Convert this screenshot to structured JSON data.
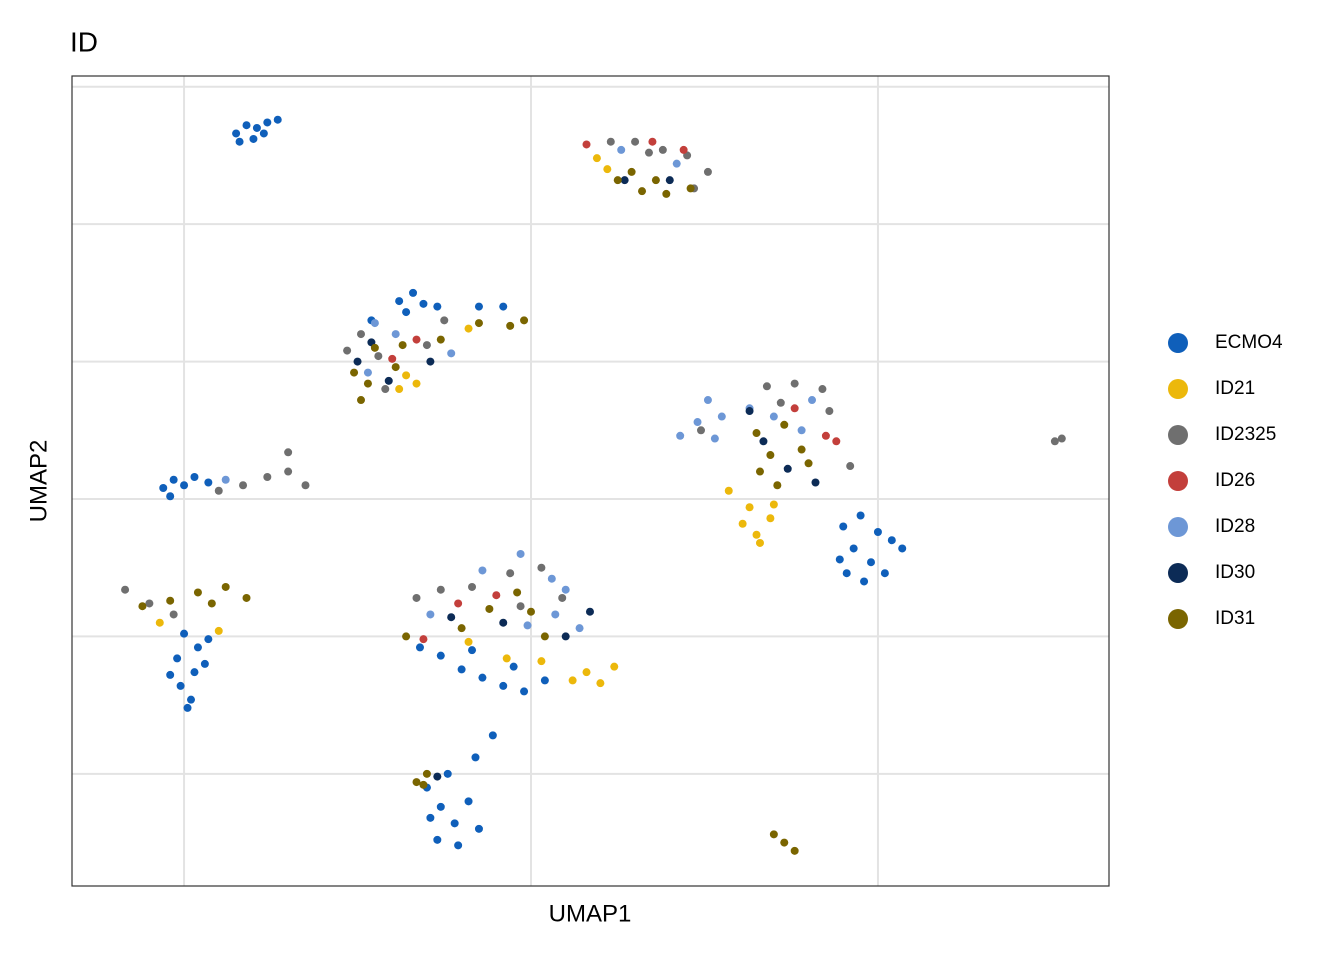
{
  "chart_data": {
    "type": "scatter",
    "title": "ID",
    "x_label": "UMAP1",
    "y_label": "UMAP2",
    "xlim": [
      -13.23,
      16.66
    ],
    "ylim": [
      -14.08,
      15.39
    ],
    "xticks": [
      -10,
      0,
      10
    ],
    "yticks": [
      -10,
      -5,
      0,
      5,
      10,
      15
    ],
    "tick_labels": false,
    "grid": true,
    "legend": "right",
    "series": [
      {
        "name": "ECMO4",
        "color": "#0f5fba",
        "x": [
          -8.5,
          -8.2,
          -7.9,
          -7.6,
          -7.3,
          -8.0,
          -7.7,
          -8.4,
          -3.8,
          -3.4,
          -3.1,
          -3.6,
          -2.7,
          -1.5,
          -0.8,
          -4.6,
          -10.6,
          -10.3,
          -10.0,
          -9.7,
          -10.4,
          -9.3,
          -10.0,
          -9.6,
          -10.2,
          -9.7,
          -10.1,
          -9.8,
          -9.3,
          -9.9,
          -10.4,
          -9.4,
          -2.6,
          -2.0,
          -1.4,
          -0.8,
          -0.2,
          0.4,
          -1.7,
          -0.5,
          -3.2,
          -3.0,
          -2.6,
          -2.2,
          -2.7,
          -2.1,
          -1.8,
          -2.4,
          -1.6,
          -1.1,
          -2.9,
          -1.5,
          9.0,
          9.5,
          10.0,
          10.4,
          9.3,
          9.8,
          10.2,
          9.6,
          8.9,
          10.7,
          9.1
        ],
        "y": [
          13.3,
          13.6,
          13.5,
          13.7,
          13.8,
          13.1,
          13.3,
          13.0,
          7.2,
          7.5,
          7.1,
          6.8,
          7.0,
          7.0,
          7.0,
          6.5,
          0.4,
          0.7,
          0.5,
          0.8,
          0.1,
          0.6,
          -4.9,
          -5.4,
          -5.8,
          -6.3,
          -6.8,
          -7.3,
          -5.1,
          -7.6,
          -6.4,
          -6.0,
          -5.7,
          -6.2,
          -6.5,
          -6.8,
          -7.0,
          -6.6,
          -5.5,
          -6.1,
          -5.4,
          -10.5,
          -11.2,
          -11.8,
          -12.4,
          -12.6,
          -11.0,
          -10.0,
          -9.4,
          -8.6,
          -11.6,
          -12.0,
          -1.0,
          -0.6,
          -1.2,
          -1.5,
          -1.8,
          -2.3,
          -2.7,
          -3.0,
          -2.2,
          -1.8,
          -2.7
        ]
      },
      {
        "name": "ID21",
        "color": "#ecb80b",
        "x": [
          1.9,
          2.2,
          -3.6,
          -3.3,
          -3.8,
          -1.8,
          1.6,
          2.0,
          2.4,
          1.2,
          0.3,
          -0.7,
          -1.8,
          6.1,
          6.5,
          6.9,
          6.3,
          7.0,
          5.7,
          6.6,
          -9.0,
          -10.7
        ],
        "y": [
          12.4,
          12.0,
          4.5,
          4.2,
          4.0,
          6.2,
          -6.3,
          -6.7,
          -6.1,
          -6.6,
          -5.9,
          -5.8,
          -5.2,
          -0.9,
          -1.3,
          -0.7,
          -0.3,
          -0.2,
          0.3,
          -1.6,
          -4.8,
          -4.5
        ]
      },
      {
        "name": "ID2325",
        "color": "#6f6f6f",
        "x": [
          2.3,
          3.0,
          3.8,
          4.5,
          5.1,
          4.7,
          3.4,
          -5.3,
          -4.9,
          -4.4,
          -3.0,
          -2.5,
          -4.2,
          -9.0,
          -8.3,
          -7.6,
          -7.0,
          -6.5,
          -7.0,
          -11.7,
          -11.0,
          -10.3,
          -3.3,
          -2.6,
          -1.7,
          -0.6,
          0.3,
          0.9,
          -0.3,
          6.8,
          7.6,
          8.4,
          8.6,
          7.2,
          4.9,
          9.2,
          15.1,
          15.3
        ],
        "y": [
          13.0,
          13.0,
          12.7,
          12.5,
          11.9,
          11.3,
          12.6,
          5.4,
          6.0,
          5.2,
          5.6,
          6.5,
          4.0,
          0.3,
          0.5,
          0.8,
          1.0,
          0.5,
          1.7,
          -3.3,
          -3.8,
          -4.2,
          -3.6,
          -3.3,
          -3.2,
          -2.7,
          -2.5,
          -3.6,
          -3.9,
          4.1,
          4.2,
          4.0,
          3.2,
          3.5,
          2.5,
          1.2,
          2.1,
          2.2
        ]
      },
      {
        "name": "ID26",
        "color": "#c33f3b",
        "x": [
          1.6,
          3.5,
          4.4,
          -4.0,
          -3.3,
          -2.1,
          -3.1,
          -1.0,
          7.6,
          8.5,
          8.8
        ],
        "y": [
          12.9,
          13.0,
          12.7,
          5.1,
          5.8,
          -3.8,
          -5.1,
          -3.5,
          3.3,
          2.3,
          2.1
        ]
      },
      {
        "name": "ID28",
        "color": "#6d97d6",
        "x": [
          2.6,
          4.2,
          -4.5,
          -3.9,
          -2.3,
          -4.7,
          -8.8,
          -1.4,
          0.6,
          1.0,
          0.7,
          -0.1,
          -2.9,
          1.4,
          -0.3,
          4.3,
          4.8,
          5.1,
          5.5,
          6.3,
          7.0,
          8.1,
          5.3,
          7.8
        ],
        "y": [
          12.7,
          12.2,
          6.4,
          6.0,
          5.3,
          4.6,
          0.7,
          -2.6,
          -2.9,
          -3.3,
          -4.2,
          -4.6,
          -4.2,
          -4.7,
          -2.0,
          2.3,
          2.8,
          3.6,
          3.0,
          3.3,
          3.0,
          3.6,
          2.2,
          2.5
        ]
      },
      {
        "name": "ID30",
        "color": "#0c2b56",
        "x": [
          2.7,
          4.0,
          -5.0,
          -4.1,
          -2.9,
          -4.6,
          -2.3,
          -0.8,
          1.7,
          1.0,
          -2.7,
          6.3,
          6.7,
          7.4,
          8.2
        ],
        "y": [
          11.6,
          11.6,
          5.0,
          4.3,
          5.0,
          5.7,
          -4.3,
          -4.5,
          -4.1,
          -5.0,
          -10.1,
          3.2,
          2.1,
          1.1,
          0.6
        ]
      },
      {
        "name": "ID31",
        "color": "#7a6500",
        "x": [
          2.5,
          3.2,
          3.9,
          4.6,
          2.9,
          3.6,
          -5.1,
          -4.7,
          -4.5,
          -3.9,
          -3.7,
          -2.6,
          -1.5,
          -0.6,
          -0.2,
          -4.9,
          -11.2,
          -10.4,
          -9.6,
          -8.8,
          -8.2,
          -9.2,
          -3.6,
          -1.2,
          0.0,
          0.4,
          -0.4,
          -2.0,
          -3.3,
          -3.0,
          -3.1,
          6.5,
          6.9,
          7.3,
          7.8,
          6.6,
          8.0,
          7.1,
          7.0,
          7.3,
          7.6
        ],
        "y": [
          11.6,
          11.2,
          11.1,
          11.3,
          11.9,
          11.6,
          4.6,
          4.2,
          5.5,
          4.8,
          5.6,
          5.8,
          6.4,
          6.3,
          6.5,
          3.6,
          -3.9,
          -3.7,
          -3.4,
          -3.2,
          -3.6,
          -3.8,
          -5.0,
          -4.0,
          -4.1,
          -5.0,
          -3.4,
          -4.7,
          -10.3,
          -10.0,
          -10.4,
          2.4,
          1.6,
          2.7,
          1.8,
          1.0,
          1.3,
          0.5,
          -12.2,
          -12.5,
          -12.8
        ]
      }
    ]
  }
}
